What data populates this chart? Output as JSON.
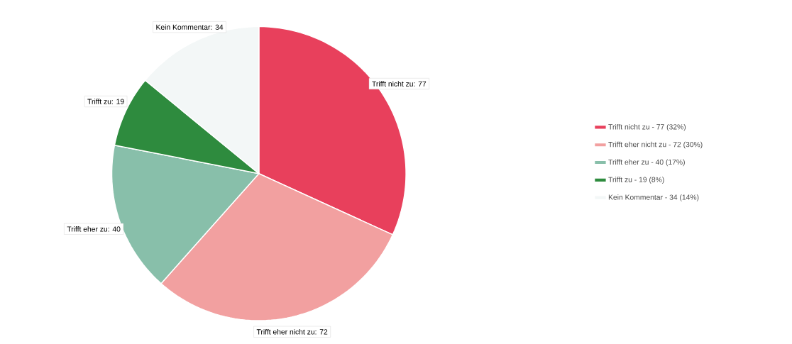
{
  "chart_data": {
    "type": "pie",
    "categories": [
      "Trifft nicht zu - 77 (32%)",
      "Trifft eher nicht zu - 72 (30%)",
      "Trifft eher zu - 40 (17%)",
      "Trifft zu - 19 (8%)",
      "Kein Kommentar - 34 (14%)"
    ],
    "values": [
      77,
      72,
      40,
      19,
      34
    ],
    "colors": [
      "#e8405c",
      "#f2a0a0",
      "#88bfaa",
      "#2e8b3e",
      "#f3f7f7"
    ],
    "value_labels": [
      "Trifft nicht zu: 77",
      "Trifft eher nicht zu: 72",
      "Trifft eher zu: 40",
      "Trifft zu: 19",
      "Kein Kommentar: 34"
    ],
    "legend": "right"
  }
}
